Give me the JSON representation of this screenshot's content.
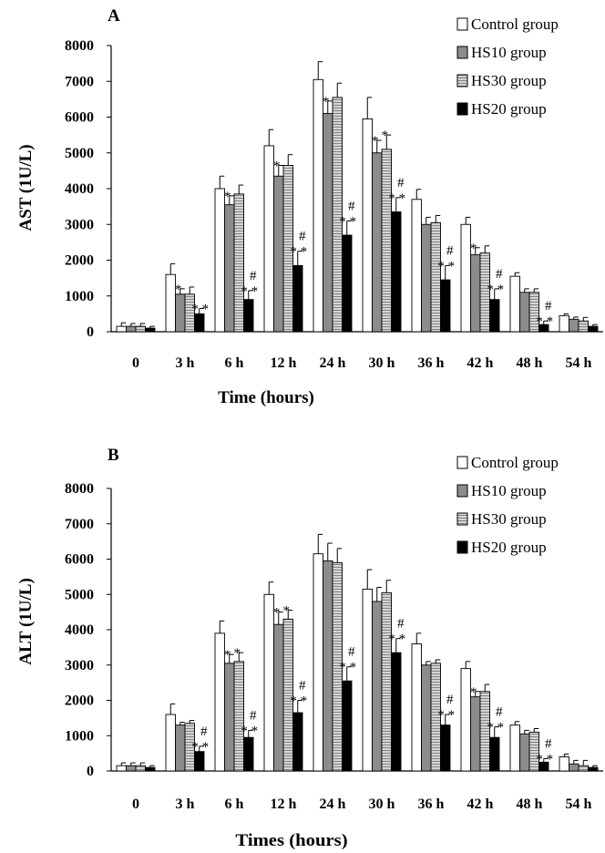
{
  "charts": [
    {
      "panel_label": "A",
      "xlabel": "Time (hours)",
      "ylabel": "AST (1U/L)"
    },
    {
      "panel_label": "B",
      "xlabel": "Times (hours)",
      "ylabel": "ALT (1U/L)"
    }
  ],
  "colors": {
    "control": "#ffffff",
    "hs10": "#8c8c8c",
    "hs30": "#d4d4d4",
    "hs20": "#000000",
    "stroke": "#000000"
  },
  "chart_data": [
    {
      "type": "bar",
      "categories": [
        "0",
        "3 h",
        "6 h",
        "12 h",
        "24 h",
        "30 h",
        "36 h",
        "42 h",
        "48 h",
        "54 h"
      ],
      "ylim": [
        0,
        8000
      ],
      "yticks": [
        "0",
        "1000",
        "2000",
        "3000",
        "4000",
        "5000",
        "6000",
        "7000",
        "8000"
      ],
      "legend_position": "top-right",
      "series": [
        {
          "name": "Control group",
          "values": [
            150,
            1600,
            4000,
            5200,
            7050,
            5950,
            3700,
            3000,
            1550,
            450
          ],
          "errors": [
            100,
            300,
            350,
            450,
            500,
            600,
            280,
            200,
            100,
            50
          ]
        },
        {
          "name": "HS10 group",
          "values": [
            150,
            1050,
            3550,
            4350,
            6100,
            5000,
            3000,
            2150,
            1100,
            350
          ],
          "errors": [
            80,
            150,
            250,
            300,
            350,
            350,
            200,
            200,
            100,
            60
          ]
        },
        {
          "name": "HS30 group",
          "values": [
            150,
            1050,
            3850,
            4650,
            6550,
            5100,
            3050,
            2200,
            1100,
            300
          ],
          "errors": [
            80,
            200,
            250,
            300,
            400,
            400,
            200,
            200,
            100,
            100
          ]
        },
        {
          "name": "HS20 group",
          "values": [
            100,
            500,
            900,
            1850,
            2700,
            3350,
            1450,
            900,
            200,
            150
          ],
          "errors": [
            50,
            150,
            250,
            400,
            400,
            400,
            400,
            300,
            100,
            50
          ]
        }
      ],
      "annotations": [
        {
          "series": 1,
          "category": 1,
          "text": "*"
        },
        {
          "series": 3,
          "category": 1,
          "text": "* *"
        },
        {
          "series": 1,
          "category": 2,
          "text": "*"
        },
        {
          "series": 3,
          "category": 2,
          "text": "# * *"
        },
        {
          "series": 1,
          "category": 3,
          "text": "*"
        },
        {
          "series": 3,
          "category": 3,
          "text": "# * *"
        },
        {
          "series": 1,
          "category": 4,
          "text": "*"
        },
        {
          "series": 3,
          "category": 4,
          "text": "# * *"
        },
        {
          "series": 1,
          "category": 5,
          "text": "*"
        },
        {
          "series": 2,
          "category": 5,
          "text": "*"
        },
        {
          "series": 3,
          "category": 5,
          "text": "# * *"
        },
        {
          "series": 3,
          "category": 6,
          "text": "# * *"
        },
        {
          "series": 1,
          "category": 7,
          "text": "*"
        },
        {
          "series": 3,
          "category": 7,
          "text": "# * *"
        },
        {
          "series": 3,
          "category": 8,
          "text": "# * *"
        }
      ]
    },
    {
      "type": "bar",
      "categories": [
        "0",
        "3 h",
        "6 h",
        "12 h",
        "24 h",
        "30 h",
        "36 h",
        "42 h",
        "48 h",
        "54 h"
      ],
      "ylim": [
        0,
        8000
      ],
      "yticks": [
        "0",
        "1000",
        "2000",
        "3000",
        "4000",
        "5000",
        "6000",
        "7000",
        "8000"
      ],
      "legend_position": "top-right",
      "series": [
        {
          "name": "Control group",
          "values": [
            150,
            1600,
            3900,
            5000,
            6150,
            5150,
            3600,
            2900,
            1300,
            400
          ],
          "errors": [
            80,
            300,
            350,
            350,
            550,
            550,
            300,
            200,
            100,
            80
          ]
        },
        {
          "name": "HS10 group",
          "values": [
            150,
            1300,
            3050,
            4150,
            5950,
            4800,
            3000,
            2100,
            1050,
            200
          ],
          "errors": [
            80,
            80,
            250,
            350,
            500,
            400,
            100,
            150,
            100,
            100
          ]
        },
        {
          "name": "HS30 group",
          "values": [
            150,
            1350,
            3100,
            4300,
            5900,
            5050,
            3050,
            2250,
            1100,
            150
          ],
          "errors": [
            80,
            80,
            250,
            250,
            400,
            350,
            100,
            200,
            100,
            150
          ]
        },
        {
          "name": "HS20 group",
          "values": [
            100,
            550,
            950,
            1650,
            2550,
            3350,
            1300,
            950,
            250,
            100
          ],
          "errors": [
            50,
            150,
            200,
            350,
            400,
            400,
            300,
            300,
            100,
            50
          ]
        }
      ],
      "annotations": [
        {
          "series": 3,
          "category": 1,
          "text": "# * *"
        },
        {
          "series": 1,
          "category": 2,
          "text": "*"
        },
        {
          "series": 2,
          "category": 2,
          "text": "*"
        },
        {
          "series": 3,
          "category": 2,
          "text": "# * *"
        },
        {
          "series": 1,
          "category": 3,
          "text": "*"
        },
        {
          "series": 2,
          "category": 3,
          "text": "*"
        },
        {
          "series": 3,
          "category": 3,
          "text": "# * *"
        },
        {
          "series": 3,
          "category": 4,
          "text": "# * *"
        },
        {
          "series": 3,
          "category": 5,
          "text": "# * *"
        },
        {
          "series": 3,
          "category": 6,
          "text": "# * *"
        },
        {
          "series": 1,
          "category": 7,
          "text": "*"
        },
        {
          "series": 3,
          "category": 7,
          "text": "# * *"
        },
        {
          "series": 3,
          "category": 8,
          "text": "# * *"
        }
      ]
    }
  ]
}
